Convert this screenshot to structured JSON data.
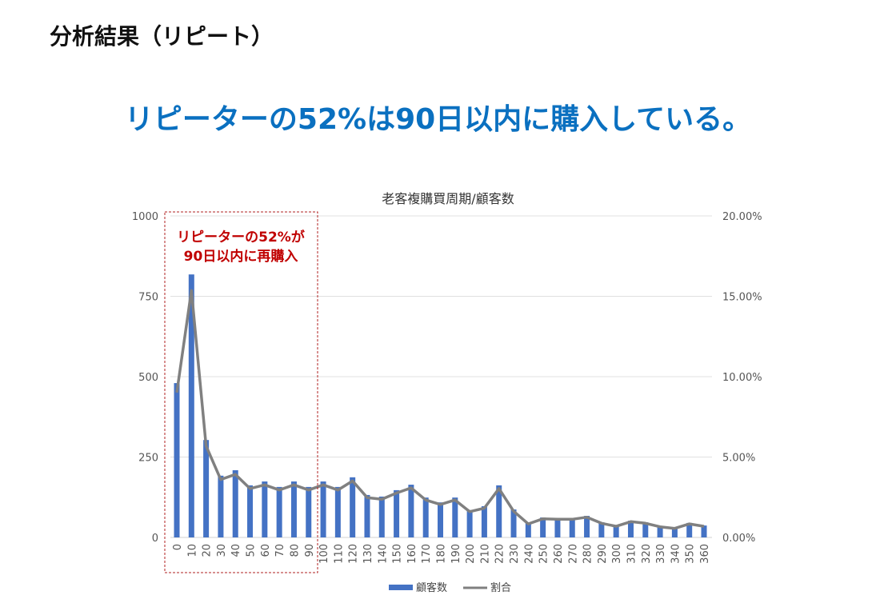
{
  "page_title": "分析結果（リピート）",
  "headline": "リピーターの52%は90日以内に購入している。",
  "colors": {
    "bar": "#4472c4",
    "line": "#808080",
    "headline": "#0a70c0",
    "annotation": "#c00000"
  },
  "chart_data": {
    "type": "bar+line",
    "title": "老客複購買周期/顧客数",
    "categories": [
      "0",
      "10",
      "20",
      "30",
      "40",
      "50",
      "60",
      "70",
      "80",
      "90",
      "100",
      "110",
      "120",
      "130",
      "140",
      "150",
      "160",
      "170",
      "180",
      "190",
      "200",
      "210",
      "220",
      "230",
      "240",
      "250",
      "260",
      "270",
      "280",
      "290",
      "300",
      "310",
      "320",
      "330",
      "340",
      "350",
      "360"
    ],
    "y_left": {
      "range": [
        0,
        1000
      ],
      "ticks": [
        "0",
        "250",
        "500",
        "750",
        "1000"
      ]
    },
    "y_right": {
      "range": [
        0,
        20
      ],
      "ticks": [
        "0.00%",
        "5.00%",
        "10.00%",
        "15.00%",
        "20.00%"
      ]
    },
    "grid": true,
    "legend_position": "bottom",
    "series": [
      {
        "name": "顧客数",
        "type": "bar",
        "axis": "left",
        "values": [
          480,
          818,
          303,
          192,
          209,
          162,
          174,
          157,
          174,
          157,
          174,
          157,
          187,
          132,
          127,
          147,
          164,
          124,
          109,
          124,
          85,
          97,
          162,
          87,
          45,
          62,
          60,
          60,
          67,
          47,
          37,
          52,
          47,
          35,
          30,
          45,
          37
        ]
      },
      {
        "name": "割合",
        "type": "line",
        "axis": "right",
        "values": [
          9.01,
          15.36,
          5.69,
          3.6,
          3.92,
          3.04,
          3.27,
          2.95,
          3.27,
          2.95,
          3.27,
          2.95,
          3.51,
          2.48,
          2.38,
          2.76,
          3.08,
          2.33,
          2.05,
          2.33,
          1.6,
          1.82,
          3.04,
          1.63,
          0.84,
          1.16,
          1.13,
          1.13,
          1.26,
          0.88,
          0.69,
          0.98,
          0.88,
          0.66,
          0.56,
          0.84,
          0.69
        ]
      }
    ],
    "annotation": {
      "line1": "リピーターの52%が",
      "line2": "90日以内に再購入",
      "range": [
        "0",
        "90"
      ]
    }
  }
}
